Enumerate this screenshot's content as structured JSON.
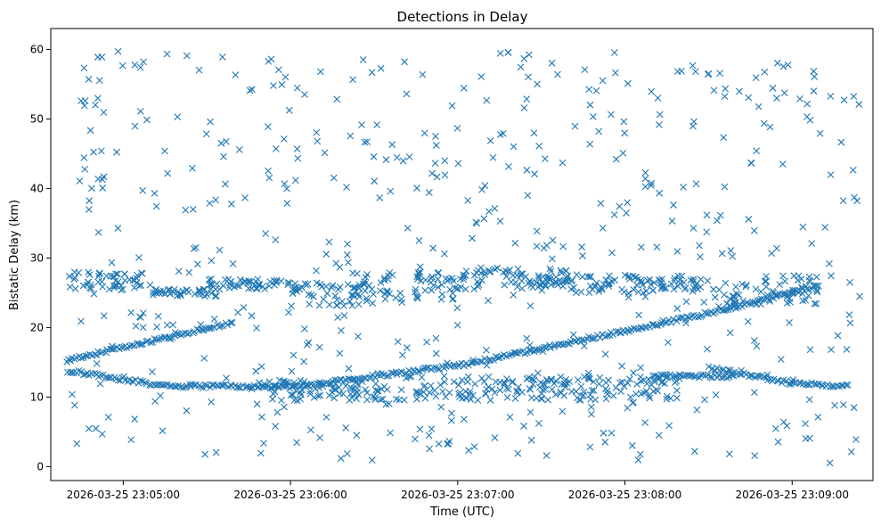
{
  "chart_data": {
    "type": "scatter",
    "title": "Detections in Delay",
    "xlabel": "Time (UTC)",
    "ylabel": "Bistatic Delay (km)",
    "x_axis": {
      "type": "datetime",
      "range": [
        "2026-03-25 23:04:34",
        "2026-03-25 23:09:29"
      ],
      "ticks": [
        {
          "t": "2026-03-25 23:05:00",
          "label": "2026-03-25 23:05:00"
        },
        {
          "t": "2026-03-25 23:06:00",
          "label": "2026-03-25 23:06:00"
        },
        {
          "t": "2026-03-25 23:07:00",
          "label": "2026-03-25 23:07:00"
        },
        {
          "t": "2026-03-25 23:08:00",
          "label": "2026-03-25 23:08:00"
        },
        {
          "t": "2026-03-25 23:09:00",
          "label": "2026-03-25 23:09:00"
        }
      ]
    },
    "y_axis": {
      "range": [
        -2,
        63
      ],
      "ticks": [
        0,
        10,
        20,
        30,
        40,
        50,
        60
      ]
    },
    "grid": false,
    "legend": "none",
    "marker": "x",
    "color": "#1f77b4",
    "time_extent": [
      "2026-03-25 23:04:40",
      "2026-03-25 23:09:25"
    ],
    "tracks": [
      {
        "kind": "line",
        "points": [
          [
            "2026-03-25 23:04:40",
            15.3
          ],
          [
            "2026-03-25 23:05:40",
            20.8
          ]
        ]
      },
      {
        "kind": "line",
        "points": [
          [
            "2026-03-25 23:04:40",
            13.8
          ],
          [
            "2026-03-25 23:05:15",
            11.6
          ],
          [
            "2026-03-25 23:06:00",
            11.5
          ],
          [
            "2026-03-25 23:07:00",
            14.5
          ],
          [
            "2026-03-25 23:08:00",
            19.5
          ],
          [
            "2026-03-25 23:08:35",
            22.5
          ],
          [
            "2026-03-25 23:09:10",
            26.0
          ]
        ]
      },
      {
        "kind": "line",
        "points": [
          [
            "2026-03-25 23:08:30",
            14.2
          ],
          [
            "2026-03-25 23:09:00",
            12.0
          ],
          [
            "2026-03-25 23:09:20",
            11.6
          ]
        ]
      },
      {
        "kind": "line",
        "points": [
          [
            "2026-03-25 23:08:10",
            13.0
          ],
          [
            "2026-03-25 23:08:40",
            13.0
          ]
        ]
      },
      {
        "kind": "band",
        "t0": "2026-03-25 23:04:40",
        "t1": "2026-03-25 23:05:10",
        "y0": 25.5,
        "y1": 28.0
      },
      {
        "kind": "band",
        "t0": "2026-03-25 23:05:10",
        "t1": "2026-03-25 23:05:35",
        "y0": 24.5,
        "y1": 25.5
      },
      {
        "kind": "band",
        "t0": "2026-03-25 23:05:30",
        "t1": "2026-03-25 23:06:00",
        "y0": 25.5,
        "y1": 27.0
      },
      {
        "kind": "band",
        "t0": "2026-03-25 23:06:00",
        "t1": "2026-03-25 23:06:30",
        "y0": 23.0,
        "y1": 26.5
      },
      {
        "kind": "band",
        "t0": "2026-03-25 23:06:20",
        "t1": "2026-03-25 23:07:00",
        "y0": 24.0,
        "y1": 28.0
      },
      {
        "kind": "band",
        "t0": "2026-03-25 23:07:00",
        "t1": "2026-03-25 23:07:40",
        "y0": 25.5,
        "y1": 28.5
      },
      {
        "kind": "band",
        "t0": "2026-03-25 23:07:30",
        "t1": "2026-03-25 23:08:20",
        "y0": 25.0,
        "y1": 27.5
      },
      {
        "kind": "band",
        "t0": "2026-03-25 23:08:20",
        "t1": "2026-03-25 23:09:10",
        "y0": 23.0,
        "y1": 27.5
      },
      {
        "kind": "band",
        "t0": "2026-03-25 23:05:50",
        "t1": "2026-03-25 23:06:40",
        "y0": 9.5,
        "y1": 12.5
      },
      {
        "kind": "band",
        "t0": "2026-03-25 23:06:40",
        "t1": "2026-03-25 23:07:40",
        "y0": 9.5,
        "y1": 13.0
      },
      {
        "kind": "band",
        "t0": "2026-03-25 23:07:40",
        "t1": "2026-03-25 23:08:20",
        "y0": 9.5,
        "y1": 13.0
      }
    ],
    "scatter_density": {
      "bistatic_delay_range": [
        0.5,
        60
      ],
      "sparse_points": 560,
      "note_points_per_track": 1.25
    }
  }
}
